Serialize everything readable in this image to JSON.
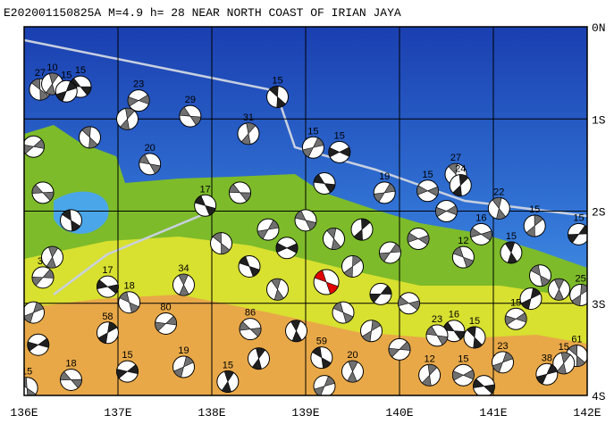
{
  "map": {
    "title": "E202001150825A M=4.9 h= 28 NEAR NORTH COAST OF IRIAN JAYA",
    "xlim": [
      136,
      142
    ],
    "ylim": [
      -4,
      0
    ],
    "xticks": [
      {
        "value": 136,
        "label": "136E"
      },
      {
        "value": 137,
        "label": "137E"
      },
      {
        "value": 138,
        "label": "138E"
      },
      {
        "value": 139,
        "label": "139E"
      },
      {
        "value": 140,
        "label": "140E"
      },
      {
        "value": 141,
        "label": "141E"
      },
      {
        "value": 142,
        "label": "142E"
      }
    ],
    "yticks": [
      {
        "value": 0,
        "label": "0N"
      },
      {
        "value": -1,
        "label": "1S"
      },
      {
        "value": -2,
        "label": "2S"
      },
      {
        "value": -3,
        "label": "3S"
      },
      {
        "value": -4,
        "label": "4S"
      }
    ],
    "main_event": {
      "lon": 139.22,
      "lat": -2.77,
      "color": "#e00000"
    },
    "events": [
      {
        "lon": 136.6,
        "lat": -0.65,
        "depth": 15
      },
      {
        "lon": 136.17,
        "lat": -0.68,
        "depth": 27
      },
      {
        "lon": 136.3,
        "lat": -0.62,
        "depth": 10
      },
      {
        "lon": 136.45,
        "lat": -0.7,
        "depth": 15
      },
      {
        "lon": 137.22,
        "lat": -0.8,
        "depth": 23
      },
      {
        "lon": 137.77,
        "lat": -0.97,
        "depth": 29
      },
      {
        "lon": 138.7,
        "lat": -0.76,
        "depth": 15
      },
      {
        "lon": 138.39,
        "lat": -1.16,
        "depth": 31
      },
      {
        "lon": 139.08,
        "lat": -1.31,
        "depth": 15
      },
      {
        "lon": 139.36,
        "lat": -1.36,
        "depth": 15
      },
      {
        "lon": 137.34,
        "lat": -1.49,
        "depth": 20
      },
      {
        "lon": 140.6,
        "lat": -1.6,
        "depth": 27
      },
      {
        "lon": 140.65,
        "lat": -1.72,
        "depth": 24
      },
      {
        "lon": 139.84,
        "lat": -1.8,
        "depth": 19
      },
      {
        "lon": 140.3,
        "lat": -1.78,
        "depth": 15
      },
      {
        "lon": 137.93,
        "lat": -1.94,
        "depth": 17
      },
      {
        "lon": 141.06,
        "lat": -1.97,
        "depth": 22
      },
      {
        "lon": 141.44,
        "lat": -2.16,
        "depth": 15
      },
      {
        "lon": 141.91,
        "lat": -2.25,
        "depth": 15
      },
      {
        "lon": 140.87,
        "lat": -2.25,
        "depth": 16
      },
      {
        "lon": 140.68,
        "lat": -2.5,
        "depth": 12
      },
      {
        "lon": 141.19,
        "lat": -2.45,
        "depth": 15
      },
      {
        "lon": 141.93,
        "lat": -2.91,
        "depth": 25
      },
      {
        "lon": 136.2,
        "lat": -2.72,
        "depth": 34
      },
      {
        "lon": 136.89,
        "lat": -2.82,
        "depth": 17
      },
      {
        "lon": 137.12,
        "lat": -2.99,
        "depth": 18
      },
      {
        "lon": 137.7,
        "lat": -2.8,
        "depth": 34
      },
      {
        "lon": 136.89,
        "lat": -3.32,
        "depth": 58
      },
      {
        "lon": 137.51,
        "lat": -3.22,
        "depth": 80
      },
      {
        "lon": 138.41,
        "lat": -3.28,
        "depth": 86
      },
      {
        "lon": 139.17,
        "lat": -3.59,
        "depth": 59
      },
      {
        "lon": 139.5,
        "lat": -3.74,
        "depth": 20
      },
      {
        "lon": 137.7,
        "lat": -3.69,
        "depth": 19
      },
      {
        "lon": 137.1,
        "lat": -3.74,
        "depth": 15
      },
      {
        "lon": 136.5,
        "lat": -3.83,
        "depth": 18
      },
      {
        "lon": 136.03,
        "lat": -3.92,
        "depth": 15
      },
      {
        "lon": 138.17,
        "lat": -3.85,
        "depth": 15
      },
      {
        "lon": 141.1,
        "lat": -3.64,
        "depth": 23
      },
      {
        "lon": 141.24,
        "lat": -3.17,
        "depth": 15
      },
      {
        "lon": 140.58,
        "lat": -3.3,
        "depth": 16
      },
      {
        "lon": 141.89,
        "lat": -3.57,
        "depth": 61
      },
      {
        "lon": 141.75,
        "lat": -3.65,
        "depth": 15
      },
      {
        "lon": 141.57,
        "lat": -3.77,
        "depth": 38
      },
      {
        "lon": 140.68,
        "lat": -3.78,
        "depth": 15
      },
      {
        "lon": 140.4,
        "lat": -3.35,
        "depth": 23
      },
      {
        "lon": 140.8,
        "lat": -3.37,
        "depth": 15
      },
      {
        "lon": 140.32,
        "lat": -3.78,
        "depth": 12
      },
      {
        "lon": 138.6,
        "lat": -2.2
      },
      {
        "lon": 138.8,
        "lat": -2.4
      },
      {
        "lon": 139.0,
        "lat": -2.1
      },
      {
        "lon": 139.3,
        "lat": -2.3
      },
      {
        "lon": 139.6,
        "lat": -2.2
      },
      {
        "lon": 139.9,
        "lat": -2.45
      },
      {
        "lon": 140.2,
        "lat": -2.3
      },
      {
        "lon": 138.4,
        "lat": -2.6
      },
      {
        "lon": 138.7,
        "lat": -2.85
      },
      {
        "lon": 139.5,
        "lat": -2.6
      },
      {
        "lon": 139.8,
        "lat": -2.9
      },
      {
        "lon": 140.1,
        "lat": -3.0
      },
      {
        "lon": 139.4,
        "lat": -3.1
      },
      {
        "lon": 138.9,
        "lat": -3.3
      },
      {
        "lon": 139.7,
        "lat": -3.3
      },
      {
        "lon": 140.0,
        "lat": -3.5
      },
      {
        "lon": 140.9,
        "lat": -3.9
      },
      {
        "lon": 141.5,
        "lat": -2.7
      },
      {
        "lon": 141.7,
        "lat": -2.85
      },
      {
        "lon": 141.4,
        "lat": -2.95
      },
      {
        "lon": 136.1,
        "lat": -1.3
      },
      {
        "lon": 136.2,
        "lat": -1.8
      },
      {
        "lon": 136.5,
        "lat": -2.1
      },
      {
        "lon": 136.3,
        "lat": -2.5
      },
      {
        "lon": 136.1,
        "lat": -3.1
      },
      {
        "lon": 136.15,
        "lat": -3.45
      },
      {
        "lon": 138.3,
        "lat": -1.8
      },
      {
        "lon": 138.1,
        "lat": -2.35
      },
      {
        "lon": 138.5,
        "lat": -3.6
      },
      {
        "lon": 139.2,
        "lat": -3.9
      },
      {
        "lon": 140.5,
        "lat": -2.0
      },
      {
        "lon": 139.2,
        "lat": -1.7
      },
      {
        "lon": 136.7,
        "lat": -1.2
      },
      {
        "lon": 137.1,
        "lat": -1.0
      }
    ]
  }
}
